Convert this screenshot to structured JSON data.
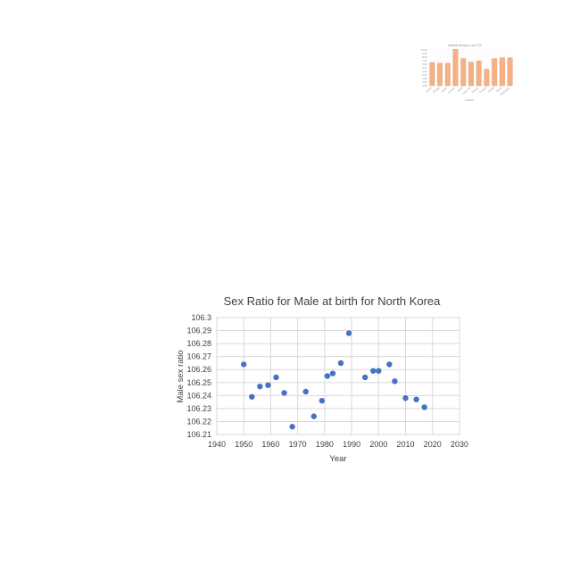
{
  "chart_data": [
    {
      "type": "scatter",
      "title": "Sex Ratio for Male at birth for North Korea",
      "xlabel": "Year",
      "ylabel": "Male sex ratio",
      "xlim": [
        1940,
        2030
      ],
      "ylim": [
        106.21,
        106.3
      ],
      "x_ticks": [
        "1940",
        "1950",
        "1960",
        "1970",
        "1980",
        "1990",
        "2000",
        "2010",
        "2020",
        "2030"
      ],
      "y_ticks": [
        "106.21",
        "106.22",
        "106.23",
        "106.24",
        "106.25",
        "106.26",
        "106.27",
        "106.28",
        "106.29",
        "106.3"
      ],
      "grid": true,
      "legend": "none",
      "color": "#4472c4",
      "points": [
        {
          "x": 1950,
          "y": 106.264
        },
        {
          "x": 1953,
          "y": 106.239
        },
        {
          "x": 1956,
          "y": 106.247
        },
        {
          "x": 1959,
          "y": 106.248
        },
        {
          "x": 1962,
          "y": 106.254
        },
        {
          "x": 1965,
          "y": 106.242
        },
        {
          "x": 1968,
          "y": 106.216
        },
        {
          "x": 1973,
          "y": 106.243
        },
        {
          "x": 1976,
          "y": 106.224
        },
        {
          "x": 1979,
          "y": 106.236
        },
        {
          "x": 1981,
          "y": 106.255
        },
        {
          "x": 1983,
          "y": 106.257
        },
        {
          "x": 1986,
          "y": 106.265
        },
        {
          "x": 1989,
          "y": 106.288
        },
        {
          "x": 1995,
          "y": 106.254
        },
        {
          "x": 1998,
          "y": 106.259
        },
        {
          "x": 2000,
          "y": 106.259
        },
        {
          "x": 2004,
          "y": 106.264
        },
        {
          "x": 2006,
          "y": 106.251
        },
        {
          "x": 2010,
          "y": 106.238
        },
        {
          "x": 2014,
          "y": 106.237
        },
        {
          "x": 2017,
          "y": 106.231
        }
      ]
    },
    {
      "type": "bar",
      "title": "Inflation timing for use 2XX",
      "xlabel": "Location",
      "ylabel": "",
      "ylim": [
        0,
        10
      ],
      "y_ticks": [
        "0.00",
        "1.00",
        "2.00",
        "3.00",
        "4.00",
        "5.00",
        "6.00",
        "7.00",
        "8.00",
        "9.00",
        "10.00"
      ],
      "categories": [
        "Boston",
        "Chicago",
        "Denver",
        "Houston",
        "Miami",
        "New York",
        "Phoenix",
        "Portland",
        "Seattle",
        "Tampa",
        "Washington"
      ],
      "values": [
        6.5,
        6.3,
        6.3,
        10.2,
        7.6,
        6.6,
        6.9,
        4.6,
        7.6,
        7.8,
        7.8
      ],
      "color": "#f4b183",
      "legend": "none"
    }
  ]
}
